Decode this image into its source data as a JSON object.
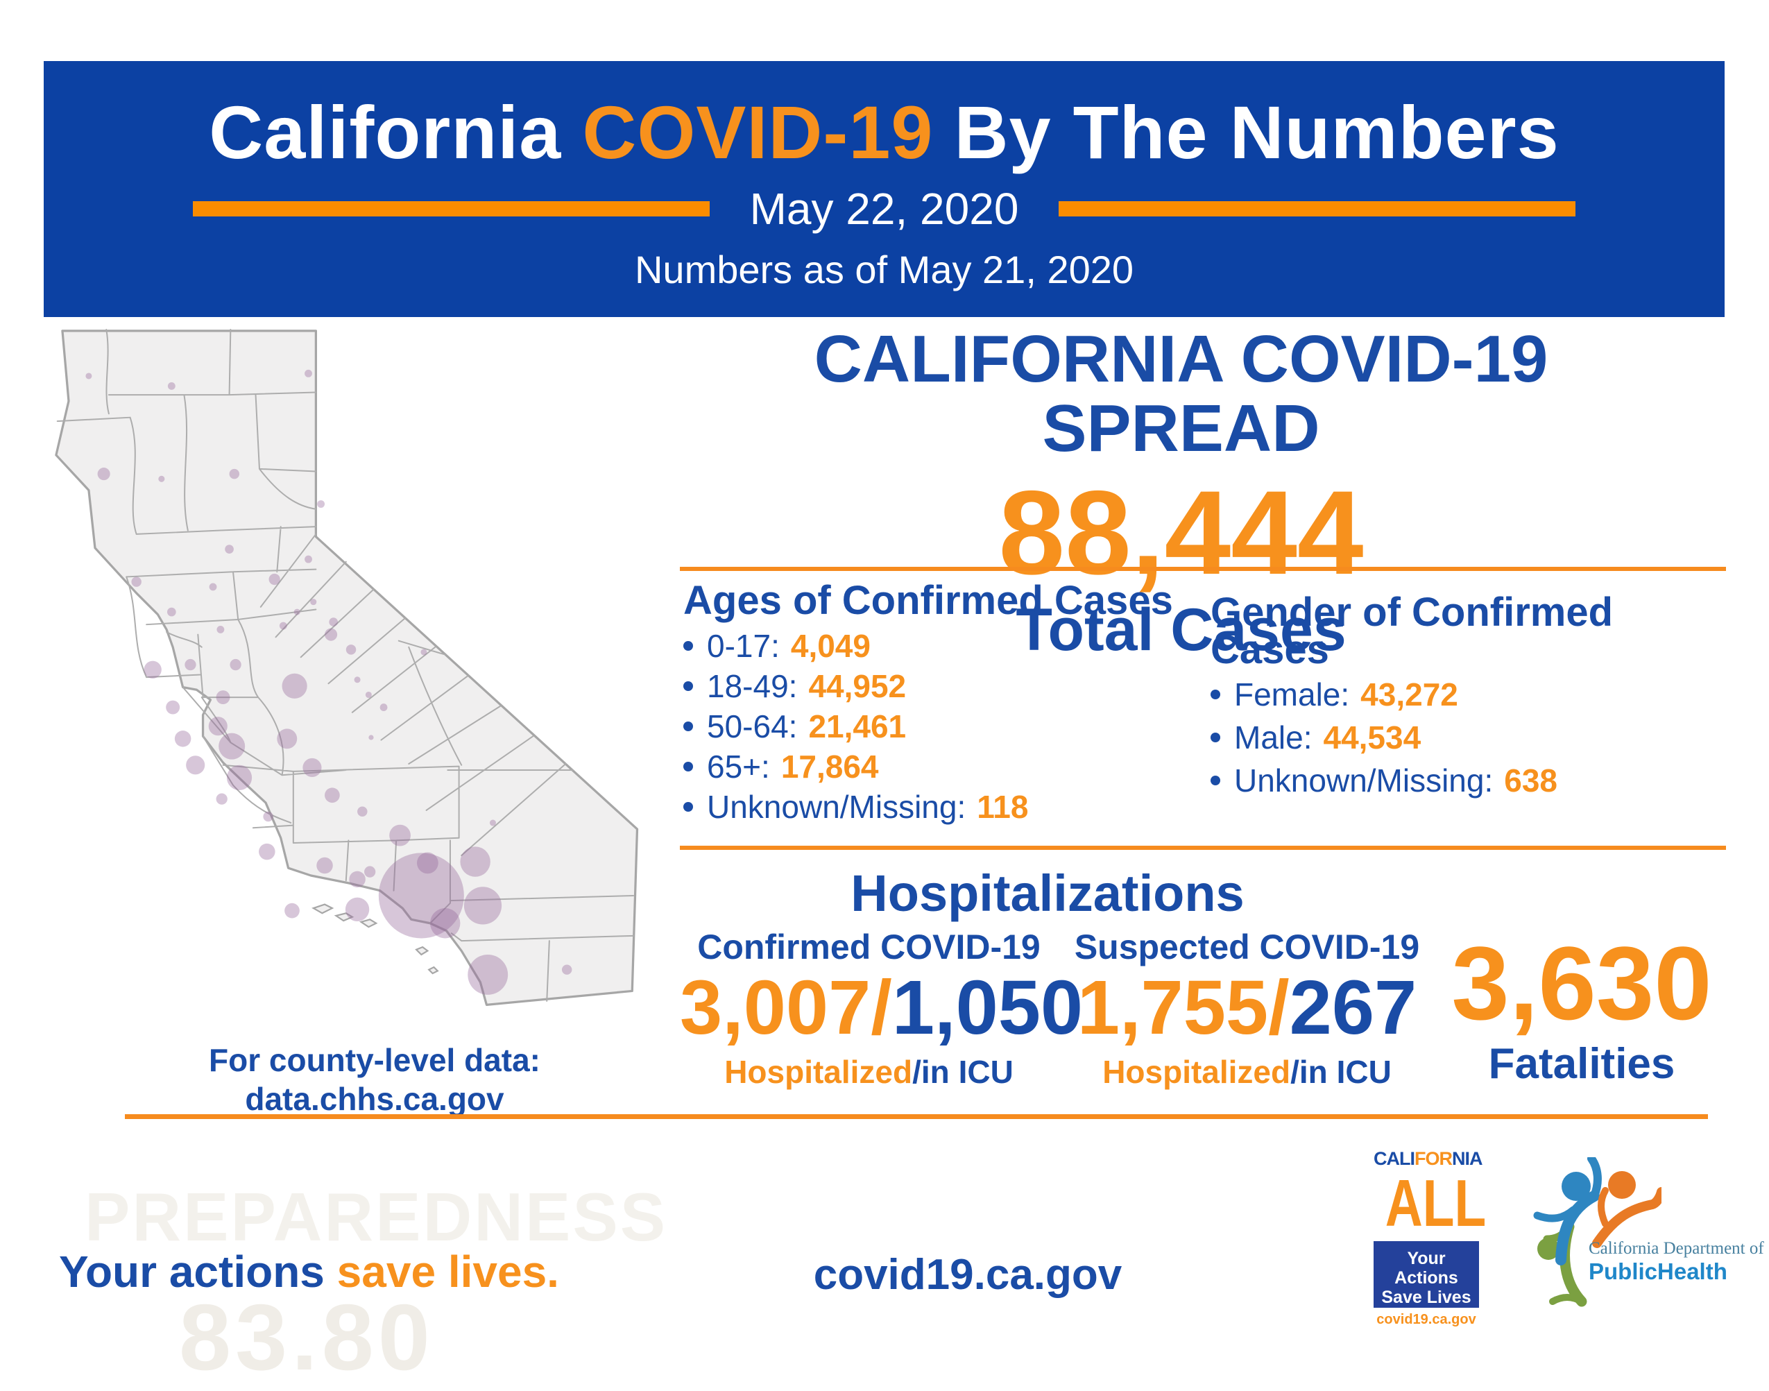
{
  "header": {
    "title_white_1": "California",
    "title_orange": "COVID-19",
    "title_white_2": "By The Numbers",
    "date": "May 22, 2020",
    "as_of": "Numbers as of May 21, 2020"
  },
  "spread": {
    "heading": "CALIFORNIA COVID-19 SPREAD",
    "total_cases_value": "88,444",
    "total_cases_label": "Total Cases"
  },
  "ages": {
    "heading": "Ages of Confirmed Cases",
    "items": [
      {
        "label": "0-17:",
        "value": "4,049"
      },
      {
        "label": "18-49:",
        "value": "44,952"
      },
      {
        "label": "50-64:",
        "value": "21,461"
      },
      {
        "label": "65+:",
        "value": "17,864"
      },
      {
        "label": "Unknown/Missing:",
        "value": "118"
      }
    ]
  },
  "gender": {
    "heading": "Gender of Confirmed Cases",
    "items": [
      {
        "label": "Female:",
        "value": "43,272"
      },
      {
        "label": "Male:",
        "value": "44,534"
      },
      {
        "label": "Unknown/Missing:",
        "value": "638"
      }
    ]
  },
  "hospitalizations": {
    "heading": "Hospitalizations",
    "confirmed": {
      "label": "Confirmed COVID-19",
      "value_orange": "3,007/",
      "value_blue": "1,050",
      "sub_orange": "Hospitalized",
      "sub_blue": "/in ICU"
    },
    "suspected": {
      "label": "Suspected COVID-19",
      "value_orange": "1,755/",
      "value_blue": "267",
      "sub_orange": "Hospitalized",
      "sub_blue": "/in ICU"
    },
    "fatalities": {
      "value": "3,630",
      "label": "Fatalities"
    }
  },
  "map": {
    "note_line1": "For county-level data:",
    "note_line2": "data.chhs.ca.gov",
    "bubble_color": "#96699B",
    "bubble_opacity": 0.38,
    "bubbles": [
      [
        33,
        42,
        2.5
      ],
      [
        99,
        50,
        3
      ],
      [
        208,
        40,
        3
      ],
      [
        45,
        120,
        5
      ],
      [
        91,
        124,
        2.5
      ],
      [
        149,
        120,
        4
      ],
      [
        218,
        144,
        3
      ],
      [
        145,
        180,
        3.5
      ],
      [
        208,
        188,
        3
      ],
      [
        71,
        206,
        4
      ],
      [
        132,
        210,
        3
      ],
      [
        181,
        204,
        4.5
      ],
      [
        212,
        222,
        2.5
      ],
      [
        228,
        238,
        3.5
      ],
      [
        199,
        230,
        2.5
      ],
      [
        188,
        241,
        3
      ],
      [
        138,
        244,
        3
      ],
      [
        99,
        230,
        3.5
      ],
      [
        226,
        248,
        5
      ],
      [
        242,
        260,
        4
      ],
      [
        84,
        276,
        7
      ],
      [
        114,
        272,
        4.5
      ],
      [
        150,
        272,
        4.5
      ],
      [
        197,
        289,
        10
      ],
      [
        247,
        284,
        2.5
      ],
      [
        256,
        296,
        2.5
      ],
      [
        268,
        306,
        3
      ],
      [
        258,
        330,
        2
      ],
      [
        300,
        262,
        2.5
      ],
      [
        100,
        306,
        5.5
      ],
      [
        140,
        298,
        5.5
      ],
      [
        136,
        321,
        7.5
      ],
      [
        108,
        331,
        6.5
      ],
      [
        147,
        337,
        10.5
      ],
      [
        118,
        352,
        7.5
      ],
      [
        153,
        362,
        10
      ],
      [
        191,
        331,
        8
      ],
      [
        211,
        354,
        7.5
      ],
      [
        139,
        379,
        4.5
      ],
      [
        227,
        376,
        6
      ],
      [
        251,
        389,
        4
      ],
      [
        281,
        408,
        8.5
      ],
      [
        176,
        393,
        4
      ],
      [
        175,
        421,
        6.5
      ],
      [
        257,
        437,
        4.5
      ],
      [
        303,
        430,
        8.5
      ],
      [
        355,
        398,
        2.5
      ],
      [
        195,
        468,
        6
      ],
      [
        247,
        467,
        9.5
      ],
      [
        221,
        432,
        6.5
      ],
      [
        247,
        443,
        6.5
      ],
      [
        298,
        456,
        34
      ],
      [
        317,
        478,
        12
      ],
      [
        347,
        464,
        15
      ],
      [
        341,
        429,
        12
      ],
      [
        351,
        519,
        16
      ],
      [
        414,
        515,
        4
      ]
    ]
  },
  "footer": {
    "tagline_blue": "Your actions",
    "tagline_orange": "save lives.",
    "site": "covid19.ca.gov"
  },
  "logos": {
    "california_all": {
      "word_blue_1": "CALI",
      "word_orange": "FOR",
      "word_blue_2": "NIA",
      "all_text": "ALL",
      "box_line1": "Your Actions",
      "box_line2": "Save Lives",
      "box_url": "covid19.ca.gov"
    },
    "cdph": {
      "dept_line": "California Department of",
      "name_line": "PublicHealth"
    }
  },
  "watermarks": {
    "word": "PREPAREDNESS",
    "number": "83.80"
  },
  "colors": {
    "banner_blue": "#0C41A3",
    "text_blue": "#1A4CA6",
    "orange": "#F7911D",
    "divider_orange": "#F68B1E",
    "bar_orange": "#FB8C00",
    "map_fill": "#F0EFEF",
    "map_stroke": "#A6A6A6",
    "bubble_purple": "#96699B",
    "ca_all_box_blue": "#24419B",
    "cdph_blue": "#1F87C9",
    "cdph_green": "#7BA041",
    "cdph_orange": "#E87A25",
    "cdph_dept_teal": "#47809F",
    "watermark_gray": "#F3F1EC"
  }
}
